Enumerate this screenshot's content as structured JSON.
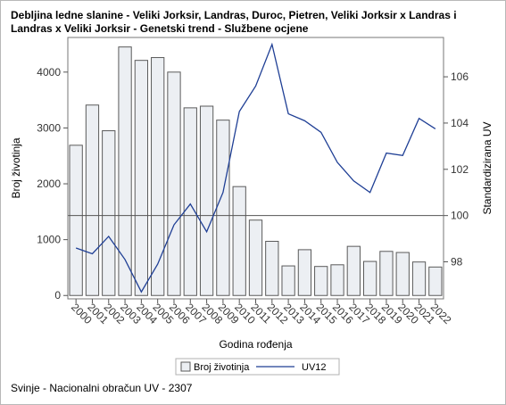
{
  "chart_data": {
    "type": "bar",
    "title": "Debljina ledne slanine - Veliki Jorksir, Landras, Duroc, Pietren, Veliki Jorksir x Landras i Landras x Veliki Jorksir - Genetski trend - Službene ocjene",
    "xlabel": "Godina rođenja",
    "ylabel": "Broj životinja",
    "y2label": "Standardizirana UV",
    "footnote": "Svinje - Nacionalni obračun UV - 2307",
    "categories": [
      "2000",
      "2001",
      "2002",
      "2003",
      "2004",
      "2005",
      "2006",
      "2007",
      "2008",
      "2009",
      "2010",
      "2011",
      "2012",
      "2013",
      "2014",
      "2015",
      "2016",
      "2017",
      "2018",
      "2019",
      "2020",
      "2021",
      "2022"
    ],
    "series": [
      {
        "name": "Broj životinja",
        "type": "bar",
        "axis": "left",
        "color": "#eceff3",
        "values": [
          2690,
          3410,
          2950,
          4450,
          4210,
          4260,
          4000,
          3360,
          3390,
          3140,
          1950,
          1350,
          970,
          530,
          820,
          520,
          550,
          880,
          610,
          790,
          770,
          600,
          510
        ]
      },
      {
        "name": "UV12",
        "type": "line",
        "axis": "right",
        "color": "#1f3f95",
        "values": [
          98.6,
          98.35,
          99.1,
          98.1,
          96.7,
          97.9,
          99.6,
          100.5,
          99.3,
          101.0,
          104.5,
          105.6,
          107.4,
          104.4,
          104.1,
          103.6,
          102.3,
          101.5,
          101.0,
          102.7,
          102.6,
          104.2,
          103.75
        ]
      }
    ],
    "ylim": [
      -60,
      4620
    ],
    "yticks": [
      0,
      1000,
      2000,
      3000,
      4000
    ],
    "y2lim": [
      96.4,
      107.7
    ],
    "y2ticks": [
      98,
      100,
      102,
      104,
      106
    ],
    "reference_line_y2": 100,
    "legend_position": "bottom",
    "grid": false
  }
}
